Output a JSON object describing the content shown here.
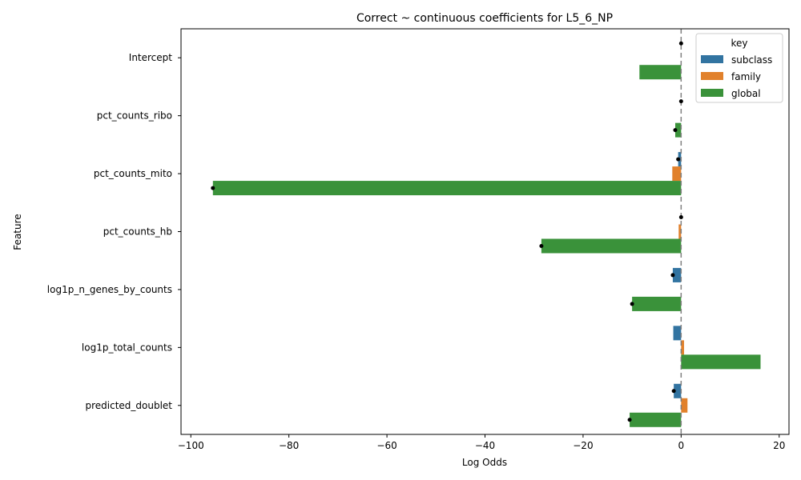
{
  "chart_data": {
    "type": "bar",
    "orientation": "horizontal",
    "title": "Correct ~ continuous coefficients for L5_6_NP",
    "xlabel": "Log Odds",
    "ylabel": "Feature",
    "categories": [
      "Intercept",
      "pct_counts_ribo",
      "pct_counts_mito",
      "pct_counts_hb",
      "log1p_n_genes_by_counts",
      "log1p_total_counts",
      "predicted_doublet"
    ],
    "xlim": [
      -102,
      22
    ],
    "xticks": [
      -100,
      -80,
      -60,
      -40,
      -20,
      0,
      20
    ],
    "xtick_labels": [
      "−100",
      "−80",
      "−60",
      "−40",
      "−20",
      "0",
      "20"
    ],
    "reference_line": {
      "x": 0,
      "style": "dashed",
      "color": "#7f7f7f"
    },
    "legend": {
      "title": "key",
      "position": "top-right"
    },
    "series": [
      {
        "name": "subclass",
        "color": "#3274a1",
        "values": [
          0.0,
          0.0,
          -0.6,
          0.0,
          -1.7,
          -1.6,
          -1.5
        ],
        "significant": [
          true,
          true,
          true,
          true,
          true,
          false,
          true
        ]
      },
      {
        "name": "family",
        "color": "#e1812c",
        "values": [
          0.0,
          0.0,
          -1.8,
          -0.5,
          0.0,
          0.6,
          1.3
        ],
        "significant": [
          false,
          false,
          false,
          false,
          false,
          false,
          false
        ]
      },
      {
        "name": "global",
        "color": "#3a923a",
        "values": [
          -8.5,
          -1.2,
          -95.5,
          -28.5,
          -10.0,
          16.2,
          -10.5
        ],
        "significant": [
          false,
          true,
          true,
          true,
          true,
          false,
          true
        ]
      }
    ]
  }
}
